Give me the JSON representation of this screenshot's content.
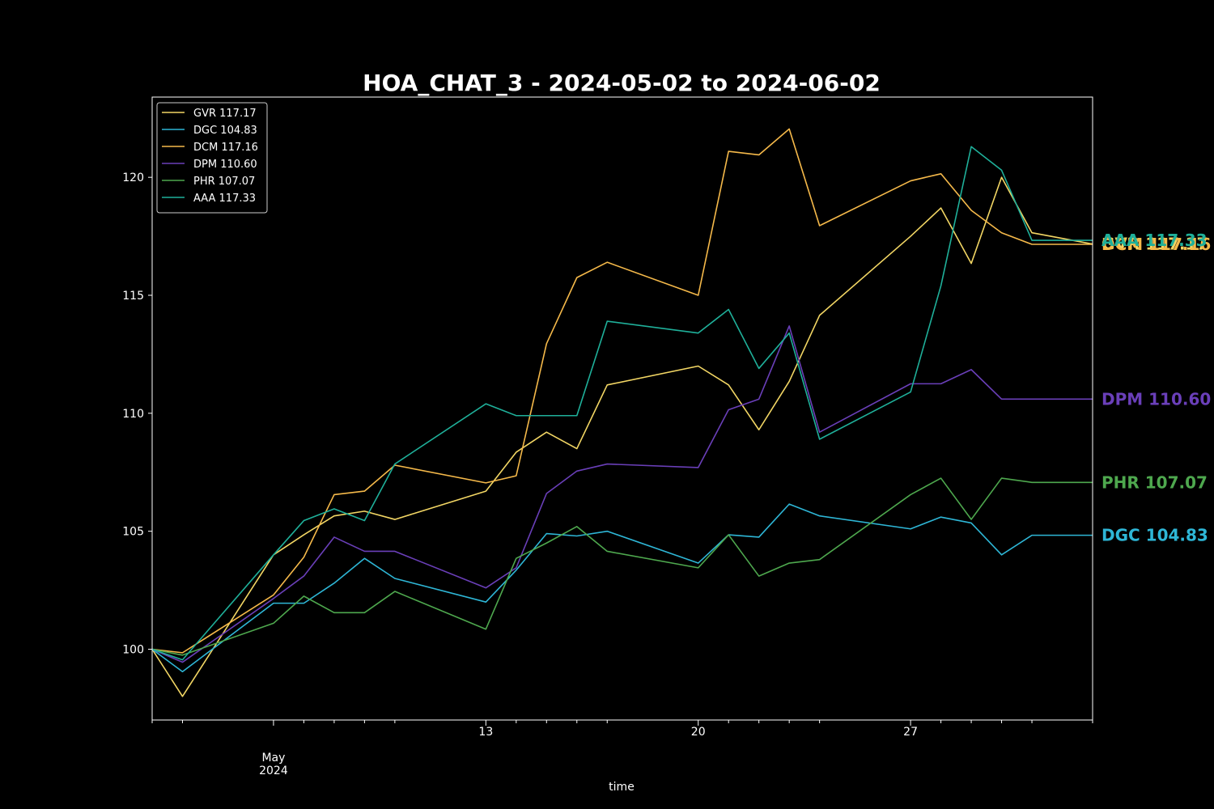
{
  "chart_data": {
    "type": "line",
    "title": "HOA_CHAT_3 - 2024-05-02 to 2024-06-02",
    "xlabel": "time",
    "ylabel": "",
    "xlim": [
      "2024-05-02",
      "2024-06-02"
    ],
    "ylim": [
      97,
      123.4
    ],
    "yticks": [
      100,
      105,
      110,
      115,
      120
    ],
    "xticks_major": [
      {
        "date": "2024-05-06",
        "label": "May\n2024"
      },
      {
        "date": "2024-05-13",
        "label": "13"
      },
      {
        "date": "2024-05-20",
        "label": "20"
      },
      {
        "date": "2024-05-27",
        "label": "27"
      }
    ],
    "xticks_minor": [
      "2024-05-02",
      "2024-05-03",
      "2024-05-07",
      "2024-05-08",
      "2024-05-09",
      "2024-05-10",
      "2024-05-14",
      "2024-05-15",
      "2024-05-16",
      "2024-05-17",
      "2024-05-21",
      "2024-05-22",
      "2024-05-23",
      "2024-05-24",
      "2024-05-28",
      "2024-05-29",
      "2024-05-30",
      "2024-05-31",
      "2024-06-02"
    ],
    "legend_position": "top-left",
    "grid": false,
    "x": [
      "2024-05-02",
      "2024-05-03",
      "2024-05-06",
      "2024-05-07",
      "2024-05-08",
      "2024-05-09",
      "2024-05-10",
      "2024-05-13",
      "2024-05-14",
      "2024-05-15",
      "2024-05-16",
      "2024-05-17",
      "2024-05-20",
      "2024-05-21",
      "2024-05-22",
      "2024-05-23",
      "2024-05-24",
      "2024-05-27",
      "2024-05-28",
      "2024-05-29",
      "2024-05-30",
      "2024-05-31",
      "2024-06-02"
    ],
    "series": [
      {
        "name": "GVR 117.17",
        "end_label": "GVR 117.17",
        "color": "#f2d664",
        "values": [
          100,
          98.0,
          104.0,
          104.85,
          105.65,
          105.85,
          105.5,
          106.7,
          108.35,
          109.2,
          108.5,
          111.2,
          112.0,
          111.2,
          109.3,
          111.35,
          114.15,
          117.5,
          118.7,
          116.35,
          120.0,
          117.65,
          117.17
        ]
      },
      {
        "name": "DGC 104.83",
        "end_label": "DGC 104.83",
        "color": "#2eb6d6",
        "values": [
          100,
          99.05,
          101.95,
          101.95,
          102.8,
          103.85,
          103.0,
          102.0,
          103.35,
          104.9,
          104.8,
          105.0,
          103.65,
          104.85,
          104.75,
          106.15,
          105.65,
          105.1,
          105.6,
          105.35,
          104.0,
          104.83,
          104.83
        ]
      },
      {
        "name": "DCM 117.16",
        "end_label": "DCM 117.16",
        "color": "#f5b94a",
        "values": [
          100,
          99.85,
          102.3,
          103.9,
          106.55,
          106.7,
          107.8,
          107.05,
          107.35,
          112.95,
          115.75,
          116.4,
          115.0,
          121.1,
          120.95,
          122.05,
          117.95,
          119.85,
          120.15,
          118.6,
          117.65,
          117.16,
          117.16
        ]
      },
      {
        "name": "DPM 110.60",
        "end_label": "DPM 110.60",
        "color": "#6a3fb9",
        "values": [
          100,
          99.45,
          102.15,
          103.1,
          104.75,
          104.15,
          104.15,
          102.6,
          103.45,
          106.6,
          107.55,
          107.85,
          107.7,
          110.15,
          110.6,
          113.7,
          109.2,
          111.25,
          111.25,
          111.85,
          110.6,
          110.6,
          110.6
        ]
      },
      {
        "name": "PHR 107.07",
        "end_label": "PHR 107.07",
        "color": "#4ea84e",
        "values": [
          100,
          99.75,
          101.1,
          102.25,
          101.55,
          101.55,
          102.45,
          100.85,
          103.85,
          104.5,
          105.2,
          104.15,
          103.45,
          104.85,
          103.1,
          103.65,
          103.8,
          106.55,
          107.25,
          105.5,
          107.25,
          107.07,
          107.07
        ]
      },
      {
        "name": "AAA 117.33",
        "end_label": "AAA 117.33",
        "color": "#1fb09a",
        "values": [
          100,
          99.55,
          104.0,
          105.45,
          105.95,
          105.45,
          107.85,
          110.4,
          109.9,
          109.9,
          109.9,
          113.9,
          113.4,
          114.4,
          111.9,
          113.4,
          108.9,
          110.9,
          115.4,
          121.3,
          120.3,
          117.33,
          117.33
        ]
      }
    ]
  }
}
